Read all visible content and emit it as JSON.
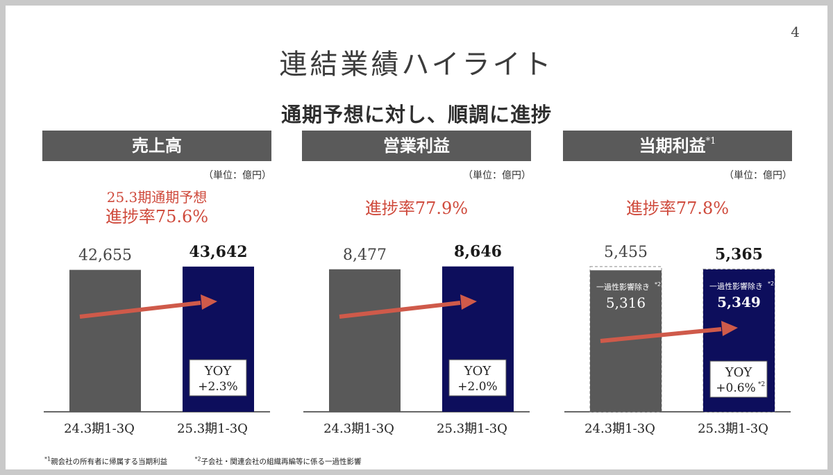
{
  "page_number": "4",
  "title": "連結業績ハイライト",
  "subtitle": "通期予想に対し、順調に進捗",
  "panels": [
    {
      "header": "売上高",
      "header_note": "",
      "unit": "（単位：億円）",
      "progress_line1": "25.3期通期予想",
      "progress_line2": "進捗率75.6%"
    },
    {
      "header": "営業利益",
      "header_note": "",
      "unit": "（単位：億円）",
      "progress_line1": "",
      "progress_line2": "進捗率77.9%"
    },
    {
      "header": "当期利益",
      "header_note": "*1",
      "unit": "（単位：億円）",
      "progress_line1": "",
      "progress_line2": "進捗率77.8%"
    }
  ],
  "chart_data": [
    {
      "type": "bar",
      "title": "売上高",
      "categories": [
        "24.3期1-3Q",
        "25.3期1-3Q"
      ],
      "values": [
        42655,
        43642
      ],
      "value_labels": [
        "42,655",
        "43,642"
      ],
      "ylim": [
        0,
        48000
      ],
      "yoy_label": "YOY",
      "yoy_value": "+2.3%",
      "yoy_note": "",
      "colors": [
        "#595959",
        "#0d0e5c"
      ]
    },
    {
      "type": "bar",
      "title": "営業利益",
      "categories": [
        "24.3期1-3Q",
        "25.3期1-3Q"
      ],
      "values": [
        8477,
        8646
      ],
      "value_labels": [
        "8,477",
        "8,646"
      ],
      "ylim": [
        0,
        9500
      ],
      "yoy_label": "YOY",
      "yoy_value": "+2.0%",
      "yoy_note": "",
      "colors": [
        "#595959",
        "#0d0e5c"
      ]
    },
    {
      "type": "bar",
      "title": "当期利益",
      "categories": [
        "24.3期1-3Q",
        "25.3期1-3Q"
      ],
      "values": [
        5455,
        5365
      ],
      "value_labels": [
        "5,455",
        "5,365"
      ],
      "inner_values": [
        5316,
        5349
      ],
      "inner_value_labels": [
        "5,316",
        "5,349"
      ],
      "inner_caption": "一過性影響除き",
      "inner_caption_note": "*2",
      "ylim": [
        0,
        6000
      ],
      "yoy_label": "YOY",
      "yoy_value": "+0.6%",
      "yoy_note": "*2",
      "colors": [
        "#595959",
        "#0d0e5c"
      ]
    }
  ],
  "footnotes": [
    {
      "mark": "*1",
      "text": "親会社の所有者に帰属する当期利益"
    },
    {
      "mark": "*2",
      "text": "子会社・関連会社の組織再編等に係る一過性影響"
    }
  ],
  "colors": {
    "accent_red": "#cf4a3c",
    "header_gray": "#5a5a5a",
    "bar_gray": "#595959",
    "bar_navy": "#0d0e5c"
  }
}
